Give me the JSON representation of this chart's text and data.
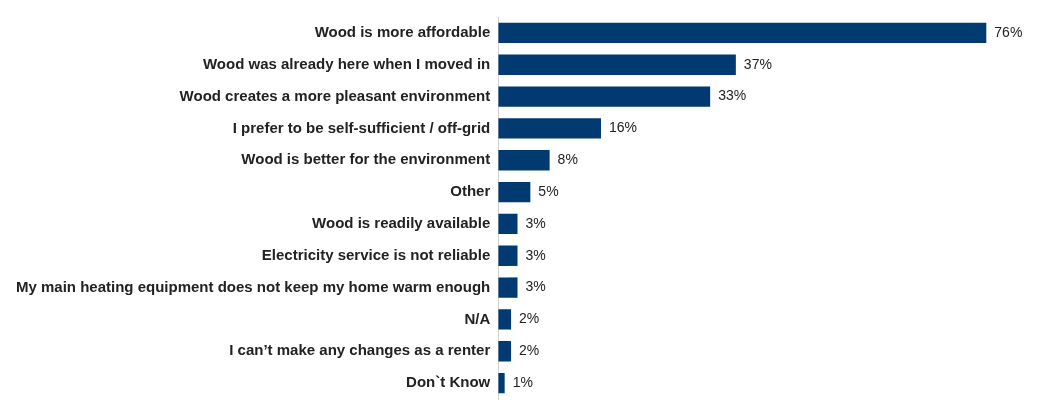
{
  "chart_data": {
    "type": "bar",
    "orientation": "horizontal",
    "categories": [
      "Wood is more affordable",
      "Wood was already here when I moved in",
      "Wood creates a more pleasant environment",
      "I prefer to be self-sufficient / off-grid",
      "Wood is better for the environment",
      "Other",
      "Wood is readily available",
      "Electricity service is not reliable",
      "My main heating equipment does not keep my home warm enough",
      "N/A",
      "I can’t make any changes as a renter",
      "Don`t Know"
    ],
    "values": [
      76,
      37,
      33,
      16,
      8,
      5,
      3,
      3,
      3,
      2,
      2,
      1
    ],
    "value_labels": [
      "76%",
      "37%",
      "33%",
      "16%",
      "8%",
      "5%",
      "3%",
      "3%",
      "3%",
      "2%",
      "2%",
      "1%"
    ],
    "color": "#003a70",
    "legend": false,
    "tick_labels": "y"
  }
}
